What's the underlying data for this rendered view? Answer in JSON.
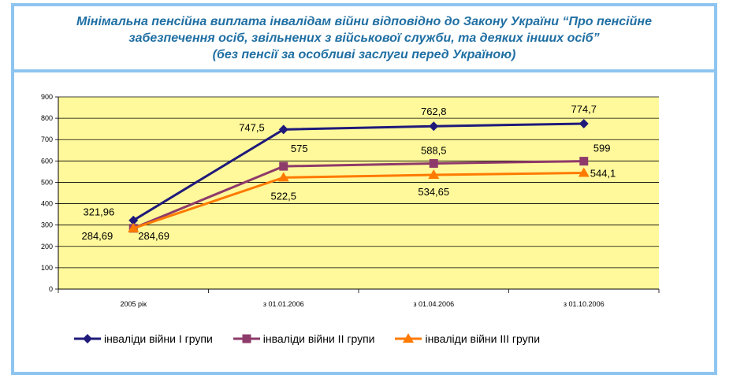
{
  "title_lines": [
    "Мінімальна пенсійна виплата інвалідам війни відповідно до Закону України “Про пенсійне",
    "забезпечення осіб, звільнених з військової служби, та деяких інших осіб”",
    "(без пенсії за особливі заслуги перед Україною)"
  ],
  "colors": {
    "frame": "#8ec5f0",
    "title": "#1f6fa3",
    "plot_background": "#fff99b"
  },
  "chart_data": {
    "type": "line",
    "categories": [
      "2005 рік",
      "з 01.01.2006",
      "з 01.04.2006",
      "з 01.10.2006"
    ],
    "ylim": [
      0,
      900
    ],
    "yticks": [
      0,
      100,
      200,
      300,
      400,
      500,
      600,
      700,
      800,
      900
    ],
    "grid": true,
    "legend_position": "bottom",
    "series": [
      {
        "name": "інваліди війни І групи",
        "values": [
          321.96,
          747.5,
          762.8,
          774.7
        ],
        "labels": [
          "321,96",
          "747,5",
          "762,8",
          "774,7"
        ],
        "color": "#1f1a7a",
        "marker": "diamond"
      },
      {
        "name": "інваліди війни ІІ групи",
        "values": [
          284.69,
          575,
          588.5,
          599
        ],
        "labels": [
          "284,69",
          "575",
          "588,5",
          "599"
        ],
        "color": "#8e3a6a",
        "marker": "square"
      },
      {
        "name": "інваліди війни ІІІ групи",
        "values": [
          284.69,
          522.5,
          534.65,
          544.1
        ],
        "labels": [
          "284,69",
          "522,5",
          "534,65",
          "544,1"
        ],
        "color": "#ff7a00",
        "marker": "triangle"
      }
    ]
  }
}
